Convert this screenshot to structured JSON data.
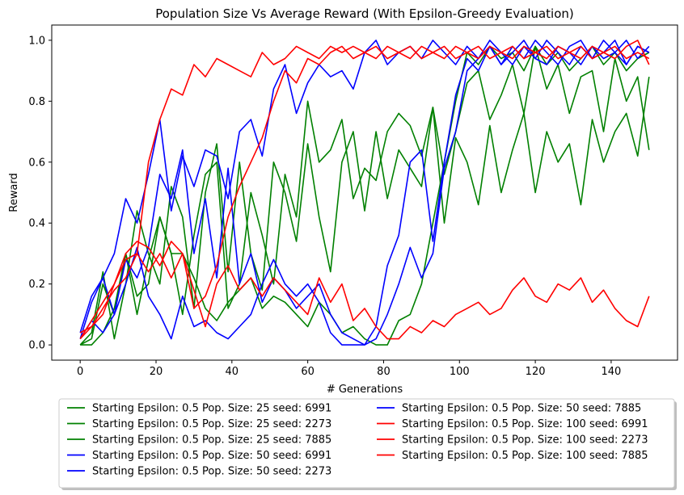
{
  "chart_data": {
    "type": "line",
    "title": "Population Size Vs Average Reward (With Epsilon-Greedy Evaluation)",
    "xlabel": "# Generations",
    "ylabel": "Reward",
    "xlim": [
      -7.5,
      157.5
    ],
    "ylim": [
      -0.05,
      1.05
    ],
    "xticks": [
      0,
      20,
      40,
      60,
      80,
      100,
      120,
      140
    ],
    "yticks": [
      0.0,
      0.2,
      0.4,
      0.6,
      0.8,
      1.0
    ],
    "xtick_labels": [
      "0",
      "20",
      "40",
      "60",
      "80",
      "100",
      "120",
      "140"
    ],
    "ytick_labels": [
      "0.0",
      "0.2",
      "0.4",
      "0.6",
      "0.8",
      "1.0"
    ],
    "legend_placement": "below-plot",
    "legend_columns": 2,
    "grid": false,
    "series": [
      {
        "name": "Starting Epsilon: 0.5 Pop. Size: 25 seed: 6991",
        "color": "#008000",
        "x": [
          0,
          3,
          6,
          9,
          12,
          15,
          18,
          21,
          24,
          27,
          30,
          33,
          36,
          39,
          42,
          45,
          48,
          51,
          54,
          57,
          60,
          63,
          66,
          69,
          72,
          75,
          78,
          81,
          84,
          87,
          90,
          93,
          96,
          99,
          102,
          105,
          108,
          111,
          114,
          117,
          120,
          123,
          126,
          129,
          132,
          135,
          138,
          141,
          144,
          147,
          150
        ],
        "y": [
          0.0,
          0.02,
          0.2,
          0.1,
          0.3,
          0.16,
          0.2,
          0.42,
          0.3,
          0.1,
          0.36,
          0.56,
          0.6,
          0.12,
          0.2,
          0.5,
          0.36,
          0.2,
          0.56,
          0.42,
          0.8,
          0.6,
          0.64,
          0.74,
          0.48,
          0.58,
          0.54,
          0.7,
          0.76,
          0.72,
          0.62,
          0.78,
          0.56,
          0.7,
          0.86,
          0.9,
          0.74,
          0.82,
          0.92,
          0.76,
          0.98,
          0.84,
          0.92,
          0.76,
          0.88,
          0.9,
          0.7,
          0.94,
          0.8,
          0.88,
          0.64
        ]
      },
      {
        "name": "Starting Epsilon: 0.5 Pop. Size: 25 seed: 2273",
        "color": "#008000",
        "x": [
          0,
          3,
          6,
          9,
          12,
          15,
          18,
          21,
          24,
          27,
          30,
          33,
          36,
          39,
          42,
          45,
          48,
          51,
          54,
          57,
          60,
          63,
          66,
          69,
          72,
          75,
          78,
          81,
          84,
          87,
          90,
          93,
          96,
          99,
          102,
          105,
          108,
          111,
          114,
          117,
          120,
          123,
          126,
          129,
          132,
          135,
          138,
          141,
          144,
          147,
          150
        ],
        "y": [
          0.0,
          0.04,
          0.24,
          0.02,
          0.2,
          0.44,
          0.3,
          0.2,
          0.52,
          0.42,
          0.12,
          0.5,
          0.66,
          0.24,
          0.6,
          0.3,
          0.18,
          0.6,
          0.5,
          0.34,
          0.66,
          0.42,
          0.24,
          0.6,
          0.7,
          0.44,
          0.7,
          0.48,
          0.64,
          0.58,
          0.52,
          0.78,
          0.4,
          0.68,
          0.6,
          0.46,
          0.72,
          0.5,
          0.64,
          0.76,
          0.5,
          0.7,
          0.6,
          0.66,
          0.46,
          0.74,
          0.6,
          0.7,
          0.76,
          0.62,
          0.88
        ]
      },
      {
        "name": "Starting Epsilon: 0.5 Pop. Size: 25 seed: 7885",
        "color": "#008000",
        "x": [
          0,
          3,
          6,
          9,
          12,
          15,
          18,
          21,
          24,
          27,
          30,
          33,
          36,
          39,
          42,
          45,
          48,
          51,
          54,
          57,
          60,
          63,
          66,
          69,
          72,
          75,
          78,
          81,
          84,
          87,
          90,
          93,
          96,
          99,
          102,
          105,
          108,
          111,
          114,
          117,
          120,
          123,
          126,
          129,
          132,
          135,
          138,
          141,
          144,
          147,
          150
        ],
        "y": [
          0.0,
          0.0,
          0.04,
          0.12,
          0.3,
          0.1,
          0.28,
          0.42,
          0.3,
          0.3,
          0.22,
          0.12,
          0.08,
          0.14,
          0.18,
          0.22,
          0.12,
          0.16,
          0.14,
          0.1,
          0.06,
          0.14,
          0.1,
          0.04,
          0.06,
          0.02,
          0.0,
          0.0,
          0.08,
          0.1,
          0.2,
          0.4,
          0.6,
          0.8,
          0.96,
          0.92,
          0.98,
          0.94,
          0.96,
          0.9,
          0.98,
          0.92,
          0.96,
          0.9,
          0.94,
          0.98,
          0.92,
          0.96,
          0.9,
          0.94,
          0.96
        ]
      },
      {
        "name": "Starting Epsilon: 0.5 Pop. Size: 50 seed: 6991",
        "color": "#0000ff",
        "x": [
          0,
          3,
          6,
          9,
          12,
          15,
          18,
          21,
          24,
          27,
          30,
          33,
          36,
          39,
          42,
          45,
          48,
          51,
          54,
          57,
          60,
          63,
          66,
          69,
          72,
          75,
          78,
          81,
          84,
          87,
          90,
          93,
          96,
          99,
          102,
          105,
          108,
          111,
          114,
          117,
          120,
          123,
          126,
          129,
          132,
          135,
          138,
          141,
          144,
          147,
          150
        ],
        "y": [
          0.02,
          0.14,
          0.22,
          0.3,
          0.48,
          0.4,
          0.56,
          0.74,
          0.44,
          0.62,
          0.52,
          0.64,
          0.62,
          0.48,
          0.7,
          0.74,
          0.62,
          0.84,
          0.92,
          0.76,
          0.86,
          0.92,
          0.88,
          0.9,
          0.84,
          0.96,
          1.0,
          0.92,
          0.96,
          0.98,
          0.94,
          1.0,
          0.96,
          0.92,
          0.98,
          0.94,
          1.0,
          0.96,
          0.92,
          0.98,
          0.94,
          1.0,
          0.96,
          0.92,
          0.98,
          0.94,
          1.0,
          0.96,
          0.92,
          0.98,
          0.96
        ]
      },
      {
        "name": "Starting Epsilon: 0.5 Pop. Size: 50 seed: 2273",
        "color": "#0000ff",
        "x": [
          0,
          3,
          6,
          9,
          12,
          15,
          18,
          21,
          24,
          27,
          30,
          33,
          36,
          39,
          42,
          45,
          48,
          51,
          54,
          57,
          60,
          63,
          66,
          69,
          72,
          75,
          78,
          81,
          84,
          87,
          90,
          93,
          96,
          99,
          102,
          105,
          108,
          111,
          114,
          117,
          120,
          123,
          126,
          129,
          132,
          135,
          138,
          141,
          144,
          147,
          150
        ],
        "y": [
          0.04,
          0.16,
          0.22,
          0.1,
          0.28,
          0.22,
          0.32,
          0.56,
          0.48,
          0.64,
          0.3,
          0.48,
          0.22,
          0.58,
          0.2,
          0.3,
          0.14,
          0.22,
          0.18,
          0.12,
          0.16,
          0.2,
          0.1,
          0.04,
          0.02,
          0.0,
          0.02,
          0.1,
          0.2,
          0.32,
          0.22,
          0.3,
          0.58,
          0.7,
          0.9,
          0.94,
          0.98,
          0.92,
          0.96,
          1.0,
          0.94,
          0.92,
          0.98,
          0.96,
          0.92,
          0.98,
          0.94,
          0.96,
          1.0,
          0.94,
          0.98
        ]
      },
      {
        "name": "Starting Epsilon: 0.5 Pop. Size: 50 seed: 7885",
        "color": "#0000ff",
        "x": [
          0,
          3,
          6,
          9,
          12,
          15,
          18,
          21,
          24,
          27,
          30,
          33,
          36,
          39,
          42,
          45,
          48,
          51,
          54,
          57,
          60,
          63,
          66,
          69,
          72,
          75,
          78,
          81,
          84,
          87,
          90,
          93,
          96,
          99,
          102,
          105,
          108,
          111,
          114,
          117,
          120,
          123,
          126,
          129,
          132,
          135,
          138,
          141,
          144,
          147,
          150
        ],
        "y": [
          0.02,
          0.08,
          0.04,
          0.1,
          0.2,
          0.32,
          0.16,
          0.1,
          0.02,
          0.16,
          0.06,
          0.08,
          0.04,
          0.02,
          0.06,
          0.1,
          0.2,
          0.28,
          0.2,
          0.16,
          0.2,
          0.14,
          0.04,
          0.0,
          0.0,
          0.0,
          0.06,
          0.26,
          0.36,
          0.6,
          0.64,
          0.34,
          0.6,
          0.82,
          0.94,
          0.9,
          0.98,
          0.92,
          0.98,
          0.94,
          1.0,
          0.96,
          0.92,
          0.98,
          1.0,
          0.94,
          0.96,
          1.0,
          0.92,
          0.98,
          0.96
        ]
      },
      {
        "name": "Starting Epsilon: 0.5 Pop. Size: 100 seed: 6991",
        "color": "#ff0000",
        "x": [
          0,
          3,
          6,
          9,
          12,
          15,
          18,
          21,
          24,
          27,
          30,
          33,
          36,
          39,
          42,
          45,
          48,
          51,
          54,
          57,
          60,
          63,
          66,
          69,
          72,
          75,
          78,
          81,
          84,
          87,
          90,
          93,
          96,
          99,
          102,
          105,
          108,
          111,
          114,
          117,
          120,
          123,
          126,
          129,
          132,
          135,
          138,
          141,
          144,
          147,
          150
        ],
        "y": [
          0.02,
          0.08,
          0.14,
          0.2,
          0.28,
          0.3,
          0.6,
          0.74,
          0.84,
          0.82,
          0.92,
          0.88,
          0.94,
          0.92,
          0.9,
          0.88,
          0.96,
          0.92,
          0.94,
          0.98,
          0.96,
          0.94,
          0.98,
          0.96,
          0.98,
          0.96,
          0.94,
          0.98,
          0.96,
          0.94,
          0.98,
          0.96,
          0.94,
          0.98,
          0.96,
          0.94,
          0.98,
          0.96,
          0.94,
          0.98,
          0.96,
          0.94,
          0.98,
          0.96,
          0.94,
          0.98,
          0.96,
          0.94,
          0.98,
          1.0,
          0.92
        ]
      },
      {
        "name": "Starting Epsilon: 0.5 Pop. Size: 100 seed: 2273",
        "color": "#ff0000",
        "x": [
          0,
          3,
          6,
          9,
          12,
          15,
          18,
          21,
          24,
          27,
          30,
          33,
          36,
          39,
          42,
          45,
          48,
          51,
          54,
          57,
          60,
          63,
          66,
          69,
          72,
          75,
          78,
          81,
          84,
          87,
          90,
          93,
          96,
          99,
          102,
          105,
          108,
          111,
          114,
          117,
          120,
          123,
          126,
          129,
          132,
          135,
          138,
          141,
          144,
          147,
          150
        ],
        "y": [
          0.02,
          0.06,
          0.1,
          0.2,
          0.3,
          0.34,
          0.32,
          0.26,
          0.34,
          0.3,
          0.18,
          0.06,
          0.2,
          0.26,
          0.18,
          0.22,
          0.16,
          0.22,
          0.18,
          0.14,
          0.1,
          0.22,
          0.14,
          0.2,
          0.08,
          0.12,
          0.06,
          0.02,
          0.02,
          0.06,
          0.04,
          0.08,
          0.06,
          0.1,
          0.12,
          0.14,
          0.1,
          0.12,
          0.18,
          0.22,
          0.16,
          0.14,
          0.2,
          0.18,
          0.22,
          0.14,
          0.18,
          0.12,
          0.08,
          0.06,
          0.16
        ]
      },
      {
        "name": "Starting Epsilon: 0.5 Pop. Size: 100 seed: 7885",
        "color": "#ff0000",
        "x": [
          0,
          3,
          6,
          9,
          12,
          15,
          18,
          21,
          24,
          27,
          30,
          33,
          36,
          39,
          42,
          45,
          48,
          51,
          54,
          57,
          60,
          63,
          66,
          69,
          72,
          75,
          78,
          81,
          84,
          87,
          90,
          93,
          96,
          99,
          102,
          105,
          108,
          111,
          114,
          117,
          120,
          123,
          126,
          129,
          132,
          135,
          138,
          141,
          144,
          147,
          150
        ],
        "y": [
          0.04,
          0.06,
          0.12,
          0.18,
          0.22,
          0.3,
          0.24,
          0.3,
          0.22,
          0.3,
          0.12,
          0.16,
          0.26,
          0.42,
          0.52,
          0.6,
          0.68,
          0.8,
          0.9,
          0.86,
          0.94,
          0.92,
          0.96,
          0.98,
          0.94,
          0.96,
          0.98,
          0.94,
          0.96,
          0.98,
          0.94,
          0.96,
          0.98,
          0.94,
          0.96,
          0.98,
          0.94,
          0.96,
          0.98,
          0.94,
          0.96,
          0.98,
          0.94,
          0.96,
          0.98,
          0.94,
          0.96,
          0.98,
          0.94,
          0.96,
          0.94
        ]
      }
    ]
  }
}
